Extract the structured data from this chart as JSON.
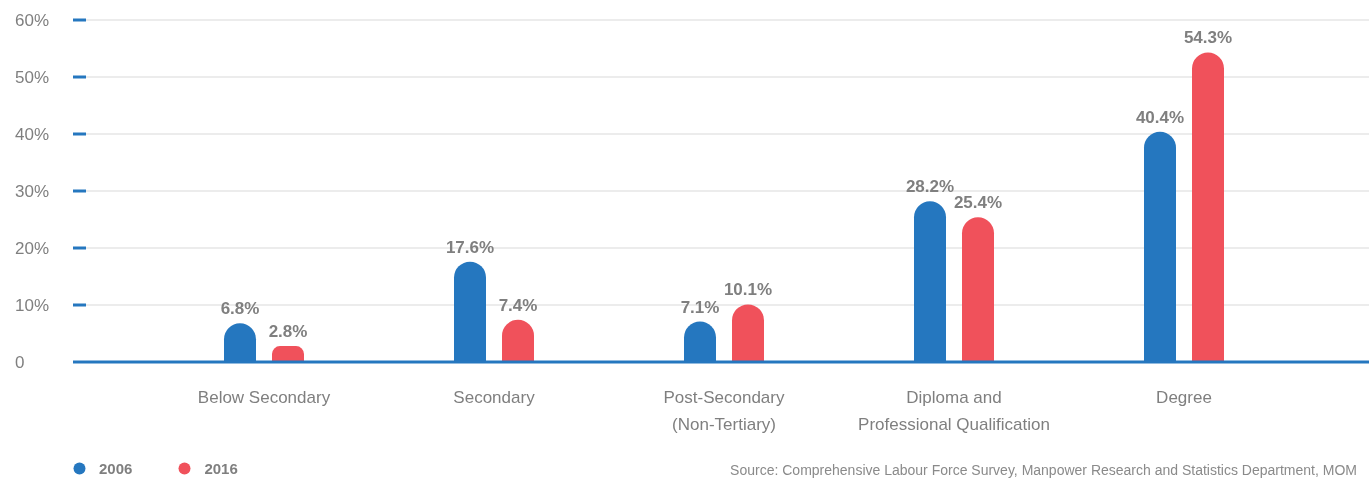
{
  "chart_data": {
    "type": "bar",
    "categories": [
      "Below Secondary",
      "Secondary",
      "Post-Secondary (Non-Tertiary)",
      "Diploma and Professional Qualification",
      "Degree"
    ],
    "series": [
      {
        "name": "2006",
        "color": "#2577bf",
        "values": [
          6.8,
          17.6,
          7.1,
          28.2,
          40.4
        ],
        "value_labels": [
          "6.8%",
          "17.6%",
          "7.1%",
          "28.2%",
          "40.4%"
        ]
      },
      {
        "name": "2016",
        "color": "#f0515b",
        "values": [
          2.8,
          7.4,
          10.1,
          25.4,
          54.3
        ],
        "value_labels": [
          "2.8%",
          "7.4%",
          "10.1%",
          "25.4%",
          "54.3%"
        ]
      }
    ],
    "ylim": [
      0,
      60
    ],
    "yticks": [
      0,
      {
        "value": 10,
        "label": "10%"
      },
      {
        "value": 20,
        "label": "20%"
      },
      {
        "value": 30,
        "label": "30%"
      },
      {
        "value": 40,
        "label": "40%"
      },
      {
        "value": 50,
        "label": "50%"
      },
      {
        "value": 60,
        "label": "60%"
      }
    ],
    "grid": "y",
    "legend": "bottom left",
    "annotations": [
      "Source: Comprehensive Labour Force Survey, Manpower Research and Statistics Department, MOM"
    ]
  }
}
